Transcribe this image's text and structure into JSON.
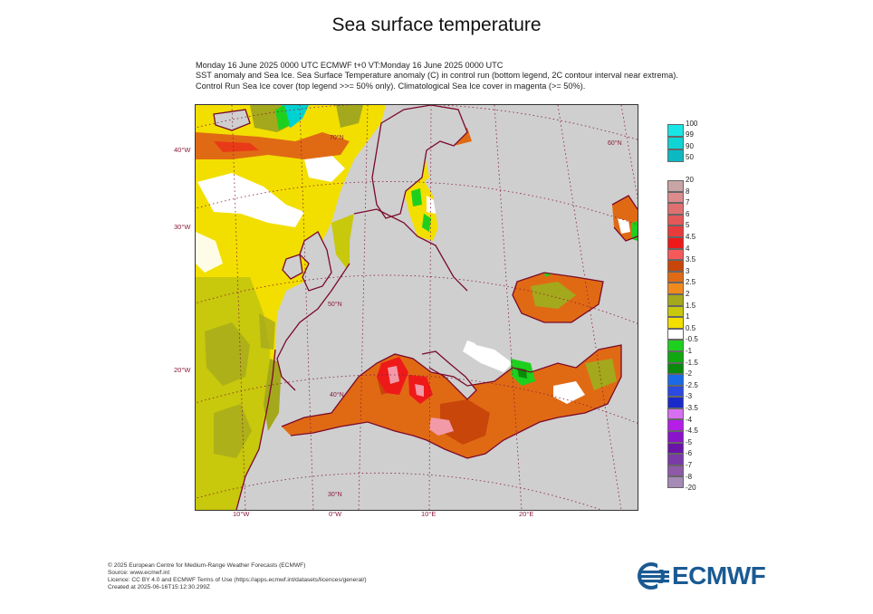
{
  "title": "Sea surface temperature",
  "header": {
    "line1": "Monday 16 June 2025 0000 UTC  ECMWF t+0  VT:Monday 16 June 2025 0000 UTC",
    "line2": "SST anomaly and Sea Ice. Sea Surface Temperature anomaly (C) in control run (bottom legend, 2C contour interval near extrema).",
    "line3": "Control Run Sea Ice cover (top legend >>= 50% only). Climatological Sea Ice cover in magenta (>= 50%)."
  },
  "map": {
    "longitude_labels": [
      "10°W",
      "0°W",
      "10°E",
      "20°E"
    ],
    "latitude_labels": [
      "40°W",
      "30°W",
      "20°W"
    ],
    "inner_labels": [
      "70°N",
      "60°N",
      "50°N",
      "40°N",
      "30°N"
    ],
    "colors": {
      "land": "#cfcfcf",
      "coast": "#7a0a2a",
      "graticule": "#8a1a3a",
      "white": "#ffffff",
      "yellow": "#f2df00",
      "olive_yellow": "#d6d200",
      "olive": "#a4a81c",
      "orange": "#e06a14",
      "dark_orange": "#c24a0a",
      "red": "#ee1a1a",
      "pink": "#f29aa8",
      "green": "#1ed01e",
      "dark_green": "#0a8a0a",
      "cyan": "#00d2d2"
    }
  },
  "ice_legend": {
    "labels": [
      "100",
      "99",
      "90",
      "50"
    ],
    "colors": [
      "#18e6e6",
      "#10d4d4",
      "#0cb8c2",
      "#0a98b0"
    ]
  },
  "sst_legend": {
    "labels": [
      "20",
      "8",
      "7",
      "6",
      "5",
      "4.5",
      "4",
      "3.5",
      "3",
      "2.5",
      "2",
      "1.5",
      "1",
      "0.5",
      "-0.5",
      "-1",
      "-1.5",
      "-2",
      "-2.5",
      "-3",
      "-3.5",
      "-4",
      "-4.5",
      "-5",
      "-6",
      "-7",
      "-8",
      "-20"
    ],
    "colors": [
      "#c8a4a4",
      "#dc8c8c",
      "#e07070",
      "#e45858",
      "#e83c3c",
      "#ee1a1a",
      "#f45a5a",
      "#c8460a",
      "#e06a14",
      "#f08a1e",
      "#a4a81c",
      "#c8c80c",
      "#f2df00",
      "#ffffff",
      "#1ed01e",
      "#10a810",
      "#0a8a0a",
      "#1a6ae6",
      "#2a4ae0",
      "#1a2ac8",
      "#d86ef0",
      "#b41ee6",
      "#8a14c8",
      "#6a14a8",
      "#7a3aa8",
      "#8e5aa8",
      "#a48ab4",
      "#9a8aa8"
    ]
  },
  "footer": {
    "line1": "© 2025 European Centre for Medium-Range Weather Forecasts (ECMWF)",
    "line2": "Source: www.ecmwf.int",
    "line3": "Licence: CC BY 4.0 and ECMWF Terms of Use (https://apps.ecmwf.int/datasets/licences/general/)",
    "line4": "Created at 2025-06-16T15:12:30.299Z"
  },
  "logo": {
    "text": "ECMWF",
    "color": "#1a5a93"
  }
}
